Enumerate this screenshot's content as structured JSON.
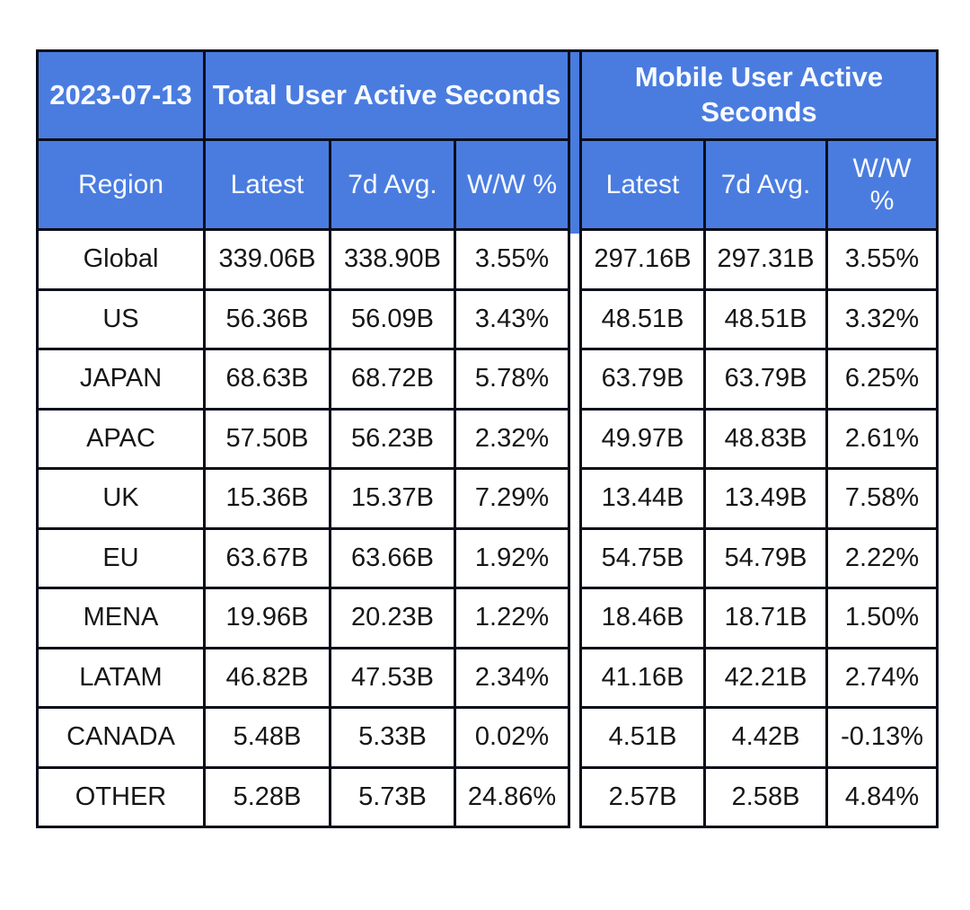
{
  "chart_data": {
    "type": "table",
    "date": "2023-07-13",
    "region_column_header": "Region",
    "groups": [
      {
        "title": "Total User Active Seconds",
        "columns": [
          "Latest",
          "7d Avg.",
          "W/W %"
        ]
      },
      {
        "title": "Mobile User Active Seconds",
        "columns": [
          "Latest",
          "7d Avg.",
          "W/W %"
        ]
      }
    ],
    "rows": [
      {
        "region": "Global",
        "total_latest": "339.06B",
        "total_7d_avg": "338.90B",
        "total_wow": "3.55%",
        "mobile_latest": "297.16B",
        "mobile_7d_avg": "297.31B",
        "mobile_wow": "3.55%"
      },
      {
        "region": "US",
        "total_latest": "56.36B",
        "total_7d_avg": "56.09B",
        "total_wow": "3.43%",
        "mobile_latest": "48.51B",
        "mobile_7d_avg": "48.51B",
        "mobile_wow": "3.32%"
      },
      {
        "region": "JAPAN",
        "total_latest": "68.63B",
        "total_7d_avg": "68.72B",
        "total_wow": "5.78%",
        "mobile_latest": "63.79B",
        "mobile_7d_avg": "63.79B",
        "mobile_wow": "6.25%"
      },
      {
        "region": "APAC",
        "total_latest": "57.50B",
        "total_7d_avg": "56.23B",
        "total_wow": "2.32%",
        "mobile_latest": "49.97B",
        "mobile_7d_avg": "48.83B",
        "mobile_wow": "2.61%"
      },
      {
        "region": "UK",
        "total_latest": "15.36B",
        "total_7d_avg": "15.37B",
        "total_wow": "7.29%",
        "mobile_latest": "13.44B",
        "mobile_7d_avg": "13.49B",
        "mobile_wow": "7.58%"
      },
      {
        "region": "EU",
        "total_latest": "63.67B",
        "total_7d_avg": "63.66B",
        "total_wow": "1.92%",
        "mobile_latest": "54.75B",
        "mobile_7d_avg": "54.79B",
        "mobile_wow": "2.22%"
      },
      {
        "region": "MENA",
        "total_latest": "19.96B",
        "total_7d_avg": "20.23B",
        "total_wow": "1.22%",
        "mobile_latest": "18.46B",
        "mobile_7d_avg": "18.71B",
        "mobile_wow": "1.50%"
      },
      {
        "region": "LATAM",
        "total_latest": "46.82B",
        "total_7d_avg": "47.53B",
        "total_wow": "2.34%",
        "mobile_latest": "41.16B",
        "mobile_7d_avg": "42.21B",
        "mobile_wow": "2.74%"
      },
      {
        "region": "CANADA",
        "total_latest": "5.48B",
        "total_7d_avg": "5.33B",
        "total_wow": "0.02%",
        "mobile_latest": "4.51B",
        "mobile_7d_avg": "4.42B",
        "mobile_wow": "-0.13%"
      },
      {
        "region": "OTHER",
        "total_latest": "5.28B",
        "total_7d_avg": "5.73B",
        "total_wow": "24.86%",
        "mobile_latest": "2.57B",
        "mobile_7d_avg": "2.58B",
        "mobile_wow": "4.84%"
      }
    ]
  },
  "colors": {
    "header_bg": "#4a7ce0",
    "header_text": "#f7faff",
    "body_text": "#161616",
    "border": "#0b0e1a",
    "page_bg": "#ffffff"
  }
}
